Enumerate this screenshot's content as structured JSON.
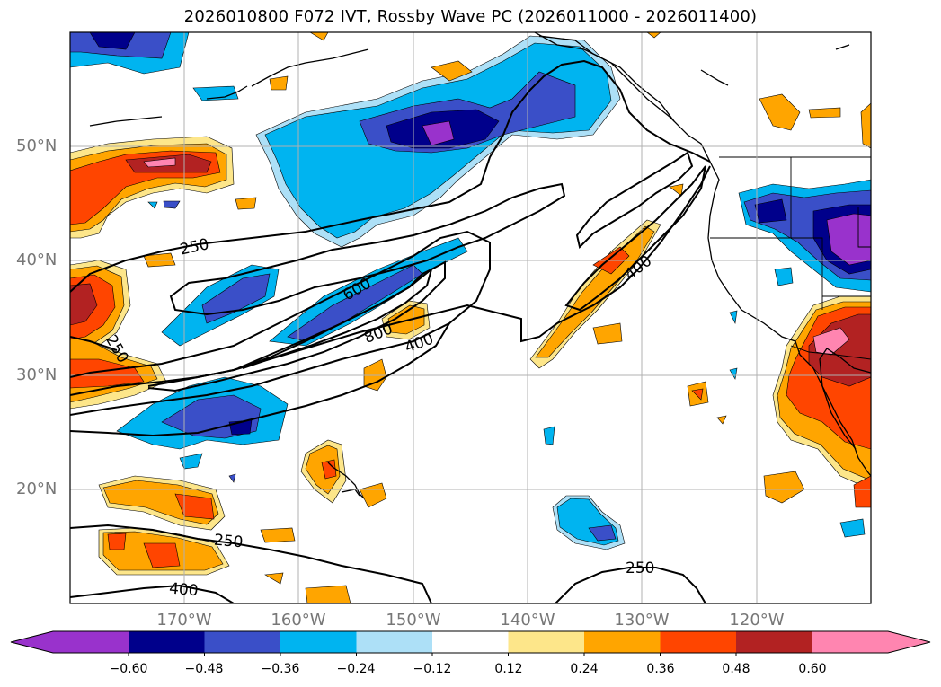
{
  "title": "2026010800 F072 IVT, Rossby Wave PC (2026011000 - 2026011400)",
  "latitude_labels": [
    "50°N",
    "40°N",
    "30°N",
    "20°N"
  ],
  "longitude_labels": [
    "170°W",
    "160°W",
    "150°W",
    "140°W",
    "130°W",
    "120°W"
  ],
  "colorbar": {
    "ticks": [
      "−0.60",
      "−0.48",
      "−0.36",
      "−0.24",
      "−0.12",
      "0.12",
      "0.24",
      "0.36",
      "0.48",
      "0.60"
    ],
    "colors": [
      "#9932CC",
      "#00008B",
      "#3A4FC8",
      "#00B4F0",
      "#ADE0F7",
      "#FFFFFF",
      "#FDE68A",
      "#FFA500",
      "#FF4500",
      "#B22222",
      "#FF85B0"
    ]
  },
  "contour_labels": [
    "250",
    "250",
    "600",
    "800",
    "400",
    "400",
    "250",
    "250",
    "400"
  ],
  "colors": {
    "coastline": "#000000",
    "gridline": "#b0b0b0",
    "contour": "#000000"
  }
}
